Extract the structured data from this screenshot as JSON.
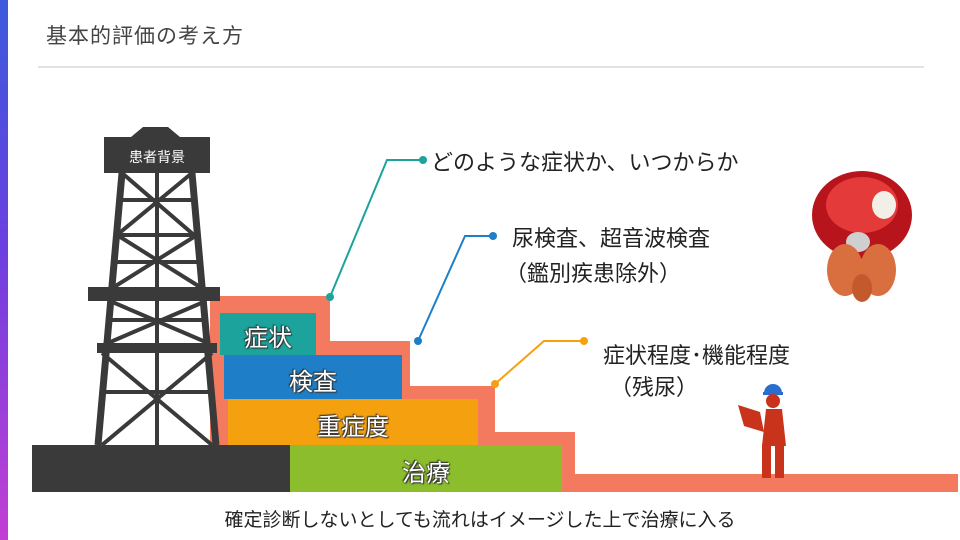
{
  "slide": {
    "title": "基本的評価の考え方",
    "caption": "確定診断しないとしても流れはイメージした上で治療に入る"
  },
  "tower": {
    "sign": "患者背景"
  },
  "steps": [
    {
      "label": "症状",
      "color": "#1ba39c"
    },
    {
      "label": "検査",
      "color": "#1e7fc8"
    },
    {
      "label": "重症度",
      "color": "#f5a00f"
    },
    {
      "label": "治療",
      "color": "#8bbd2c"
    }
  ],
  "callouts": {
    "symptoms": "どのような症状か、いつからか",
    "tests_line1": "尿検査、超音波検査",
    "tests_line2": "（鑑別疾患除外）",
    "severity_line1": "症状程度･機能程度",
    "severity_line2": "（残尿）"
  },
  "colors": {
    "ground": "#f47a5f",
    "base": "#3a3a3a",
    "callout_teal": "#1ba39c",
    "callout_blue": "#1e7fc8",
    "callout_orange": "#f5a00f"
  }
}
